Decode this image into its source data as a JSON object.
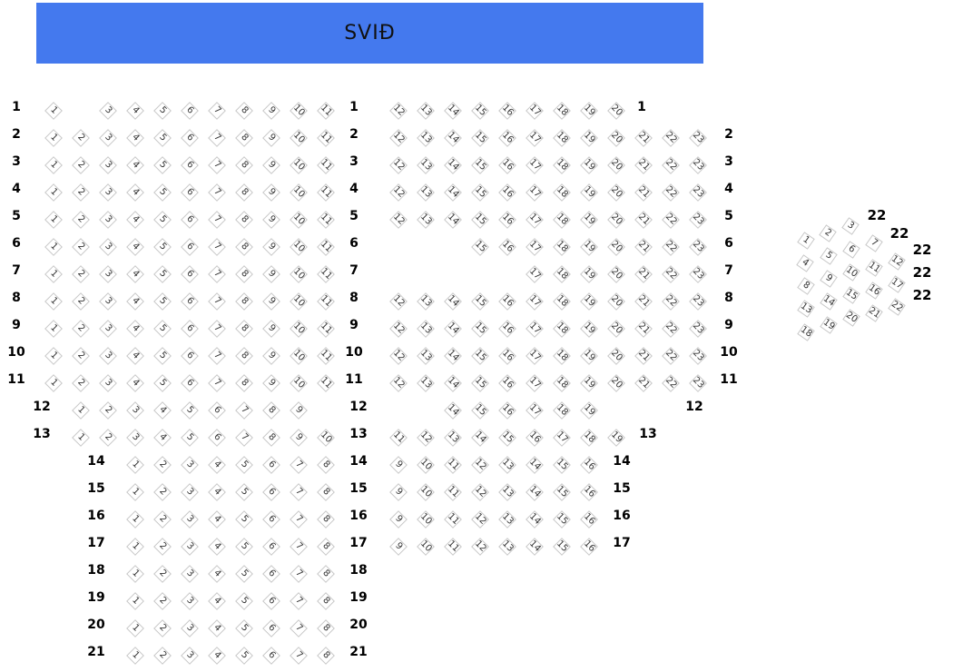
{
  "stage": {
    "label": "SVIÐ",
    "color": "#4479ee"
  },
  "left_block": [
    {
      "row": "1",
      "seats": [
        1,
        3,
        4,
        5,
        6,
        7,
        8,
        9,
        10,
        11
      ]
    },
    {
      "row": "2",
      "seats": [
        1,
        2,
        3,
        4,
        5,
        6,
        7,
        8,
        9,
        10,
        11
      ]
    },
    {
      "row": "3",
      "seats": [
        1,
        2,
        3,
        4,
        5,
        6,
        7,
        8,
        9,
        10,
        11
      ]
    },
    {
      "row": "4",
      "seats": [
        1,
        2,
        3,
        4,
        5,
        6,
        7,
        8,
        9,
        10,
        11
      ]
    },
    {
      "row": "5",
      "seats": [
        1,
        2,
        3,
        4,
        5,
        6,
        7,
        8,
        9,
        10,
        11
      ]
    },
    {
      "row": "6",
      "seats": [
        1,
        2,
        3,
        4,
        5,
        6,
        7,
        8,
        9,
        10,
        11
      ]
    },
    {
      "row": "7",
      "seats": [
        1,
        2,
        3,
        4,
        5,
        6,
        7,
        8,
        9,
        10,
        11
      ]
    },
    {
      "row": "8",
      "seats": [
        1,
        2,
        3,
        4,
        5,
        6,
        7,
        8,
        9,
        10,
        11
      ]
    },
    {
      "row": "9",
      "seats": [
        1,
        2,
        3,
        4,
        5,
        6,
        7,
        8,
        9,
        10,
        11
      ]
    },
    {
      "row": "10",
      "seats": [
        1,
        2,
        3,
        4,
        5,
        6,
        7,
        8,
        9,
        10,
        11
      ]
    },
    {
      "row": "11",
      "seats": [
        1,
        2,
        3,
        4,
        5,
        6,
        7,
        8,
        9,
        10,
        11
      ]
    },
    {
      "row": "12",
      "seats": [
        1,
        2,
        3,
        4,
        5,
        6,
        7,
        8,
        9
      ]
    },
    {
      "row": "13",
      "seats": [
        1,
        2,
        3,
        4,
        5,
        6,
        7,
        8,
        9,
        10
      ]
    },
    {
      "row": "14",
      "seats": [
        1,
        2,
        3,
        4,
        5,
        6,
        7,
        8
      ]
    },
    {
      "row": "15",
      "seats": [
        1,
        2,
        3,
        4,
        5,
        6,
        7,
        8
      ]
    },
    {
      "row": "16",
      "seats": [
        1,
        2,
        3,
        4,
        5,
        6,
        7,
        8
      ]
    },
    {
      "row": "17",
      "seats": [
        1,
        2,
        3,
        4,
        5,
        6,
        7,
        8
      ]
    },
    {
      "row": "18",
      "seats": [
        1,
        2,
        3,
        4,
        5,
        6,
        7,
        8
      ]
    },
    {
      "row": "19",
      "seats": [
        1,
        2,
        3,
        4,
        5,
        6,
        7,
        8
      ]
    },
    {
      "row": "20",
      "seats": [
        1,
        2,
        3,
        4,
        5,
        6,
        7,
        8
      ]
    },
    {
      "row": "21",
      "seats": [
        1,
        2,
        3,
        4,
        5,
        6,
        7,
        8
      ]
    }
  ],
  "right_block": [
    {
      "row": "1",
      "seats": [
        12,
        13,
        14,
        15,
        16,
        17,
        18,
        19,
        20
      ]
    },
    {
      "row": "2",
      "seats": [
        12,
        13,
        14,
        15,
        16,
        17,
        18,
        19,
        20,
        21,
        22,
        23
      ]
    },
    {
      "row": "3",
      "seats": [
        12,
        13,
        14,
        15,
        16,
        17,
        18,
        19,
        20,
        21,
        22,
        23
      ]
    },
    {
      "row": "4",
      "seats": [
        12,
        13,
        14,
        15,
        16,
        17,
        18,
        19,
        20,
        21,
        22,
        23
      ]
    },
    {
      "row": "5",
      "seats": [
        12,
        13,
        14,
        15,
        16,
        17,
        18,
        19,
        20,
        21,
        22,
        23
      ]
    },
    {
      "row": "6",
      "seats": [
        15,
        16,
        17,
        18,
        19,
        20,
        21,
        22,
        23
      ]
    },
    {
      "row": "7",
      "seats": [
        17,
        18,
        19,
        20,
        21,
        22,
        23
      ]
    },
    {
      "row": "8",
      "seats": [
        12,
        13,
        14,
        15,
        16,
        17,
        18,
        19,
        20,
        21,
        22,
        23
      ]
    },
    {
      "row": "9",
      "seats": [
        12,
        13,
        14,
        15,
        16,
        17,
        18,
        19,
        20,
        21,
        22,
        23
      ]
    },
    {
      "row": "10",
      "seats": [
        12,
        13,
        14,
        15,
        16,
        17,
        18,
        19,
        20,
        21,
        22,
        23
      ]
    },
    {
      "row": "11",
      "seats": [
        12,
        13,
        14,
        15,
        16,
        17,
        18,
        19,
        20,
        21,
        22,
        23
      ]
    },
    {
      "row": "12",
      "seats": [
        14,
        15,
        16,
        17,
        18,
        19
      ]
    },
    {
      "row": "13",
      "seats": [
        11,
        12,
        13,
        14,
        15,
        16,
        17,
        18,
        19
      ]
    },
    {
      "row": "14",
      "seats": [
        9,
        10,
        11,
        12,
        13,
        14,
        15,
        16
      ]
    },
    {
      "row": "15",
      "seats": [
        9,
        10,
        11,
        12,
        13,
        14,
        15,
        16
      ]
    },
    {
      "row": "16",
      "seats": [
        9,
        10,
        11,
        12,
        13,
        14,
        15,
        16
      ]
    },
    {
      "row": "17",
      "seats": [
        9,
        10,
        11,
        12,
        13,
        14,
        15,
        16
      ]
    }
  ],
  "side_section": {
    "labels": [
      "22",
      "22",
      "22",
      "22",
      "22"
    ],
    "seats": [
      1,
      2,
      3,
      4,
      5,
      6,
      7,
      8,
      9,
      10,
      11,
      12,
      13,
      14,
      15,
      16,
      17,
      18,
      19,
      20,
      21,
      22
    ]
  }
}
